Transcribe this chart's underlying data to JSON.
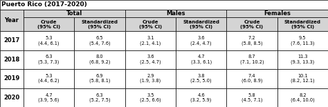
{
  "title": "Puerto Rico (2017-2020)",
  "col_headers": [
    "Crude\n(95% CI)",
    "Standardized\n(95% CI)",
    "Crude\n(95% CI)",
    "Standardized\n(95% CI)",
    "Crude\n(95% CI)",
    "Standardized\n(95% CI)"
  ],
  "row_header": "Year",
  "years": [
    "2017",
    "2018",
    "2019",
    "2020"
  ],
  "data": [
    [
      "5.3\n(4.4, 6.1)",
      "6.5\n(5.4, 7.6)",
      "3.1\n(2.1, 4.1)",
      "3.6\n(2.4, 4.7)",
      "7.2\n(5.8, 8.5)",
      "9.5\n(7.6, 11.3)"
    ],
    [
      "6.3\n(5.3, 7.3)",
      "8.0\n(6.8, 9.2)",
      "3.6\n(2.5, 4.7)",
      "4.7\n(3.3, 6.1)",
      "8.7\n(7.1, 10.2)",
      "11.3\n(9.3, 13.3)"
    ],
    [
      "5.3\n(4.4, 6.2)",
      "6.9\n(5.8, 8.1)",
      "2.9\n(1.9, 3.8)",
      "3.8\n(2.5, 5.0)",
      "7.4\n(6.0, 8.9)",
      "10.1\n(8.2, 12.1)"
    ],
    [
      "4.7\n(3.9, 5.6)",
      "6.3\n(5.2, 7.5)",
      "3.5\n(2.5, 6.6)",
      "4.6\n(3.2, 5.9)",
      "5.8\n(4.5, 7.1)",
      "8.2\n(6.4, 10.0)"
    ]
  ],
  "bg_color": "#ffffff",
  "header_bg": "#d4d4d4",
  "group_bg": "#d4d4d4",
  "border_color": "#000000",
  "text_color": "#000000",
  "title_fontsize": 6.5,
  "group_fontsize": 6.0,
  "header_fontsize": 5.0,
  "data_fontsize": 4.8,
  "year_fontsize": 6.0
}
